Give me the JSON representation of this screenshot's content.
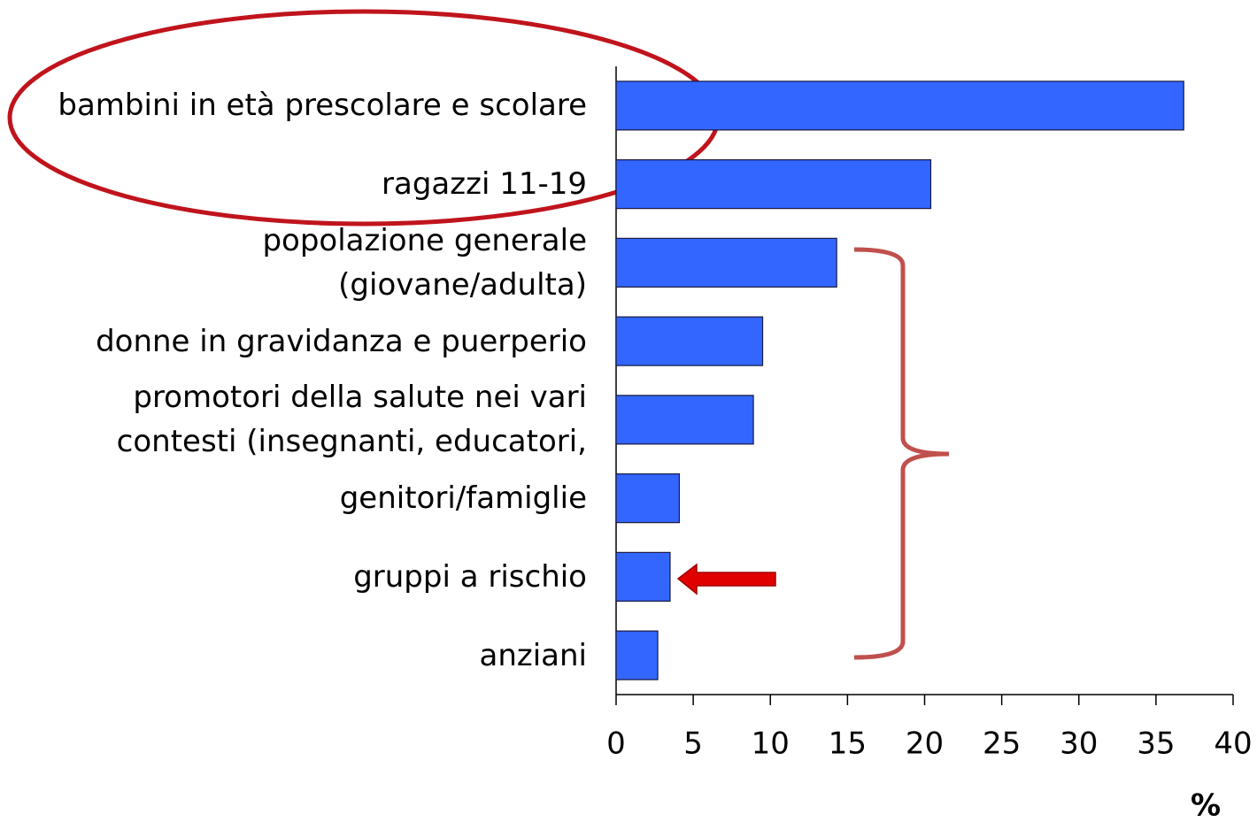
{
  "chart_data": {
    "type": "bar",
    "orientation": "horizontal",
    "categories": [
      "bambini in età prescolare e scolare",
      "ragazzi 11-19",
      "popolazione generale\n(giovane/adulta)",
      "donne in gravidanza e puerperio",
      "promotori della salute nei vari\ncontesti (insegnanti, educatori,",
      "genitori/famiglie",
      "gruppi a rischio",
      "anziani"
    ],
    "values": [
      36.8,
      20.4,
      14.3,
      9.5,
      8.9,
      4.1,
      3.5,
      2.7
    ],
    "color": "#3366ff",
    "xlim": [
      0,
      40
    ],
    "xticks": [
      0,
      5,
      10,
      15,
      20,
      25,
      30,
      35,
      40
    ],
    "x_label": "%"
  }
}
